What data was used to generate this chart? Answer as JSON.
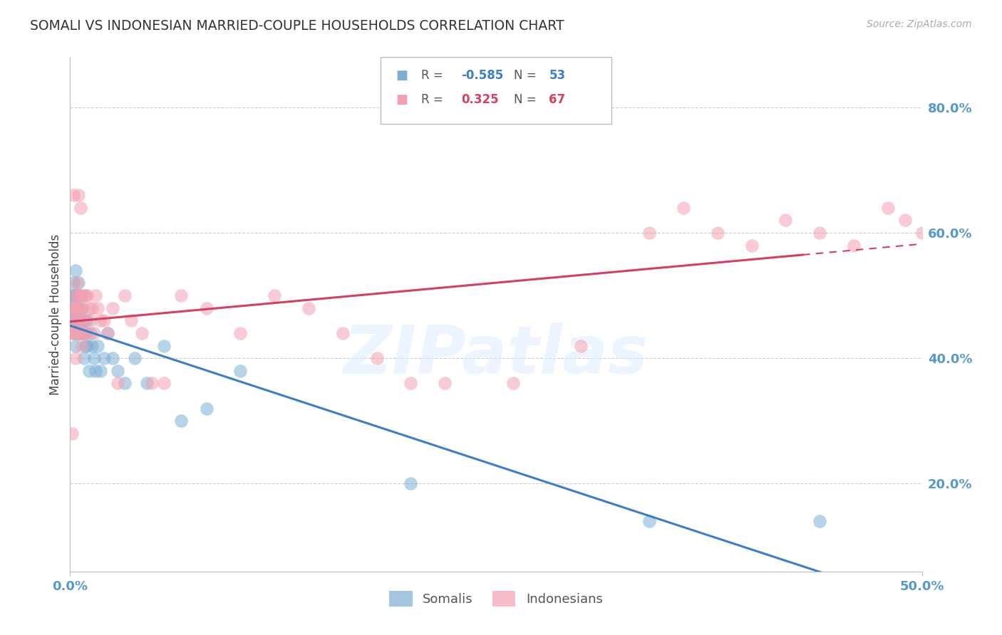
{
  "title": "SOMALI VS INDONESIAN MARRIED-COUPLE HOUSEHOLDS CORRELATION CHART",
  "source": "Source: ZipAtlas.com",
  "ylabel": "Married-couple Households",
  "xlim": [
    0.0,
    0.5
  ],
  "ylim": [
    0.06,
    0.88
  ],
  "yticks": [
    0.2,
    0.4,
    0.6,
    0.8
  ],
  "ytick_labels": [
    "20.0%",
    "40.0%",
    "60.0%",
    "80.0%"
  ],
  "xticks": [
    0.0,
    0.5
  ],
  "xtick_labels": [
    "0.0%",
    "50.0%"
  ],
  "somali_color": "#7BAFD4",
  "indonesian_color": "#F4A0B0",
  "somali_line_color": "#3B7FC4",
  "indonesian_line_color": "#D44060",
  "indonesian_dash_color": "#D44060",
  "watermark_text": "ZIPatlas",
  "legend_somali": "Somalis",
  "legend_indonesian": "Indonesians",
  "somali_R": "-0.585",
  "somali_N": "53",
  "indonesian_R": "0.325",
  "indonesian_N": "67",
  "somali_x": [
    0.001,
    0.001,
    0.001,
    0.002,
    0.002,
    0.002,
    0.002,
    0.002,
    0.003,
    0.003,
    0.003,
    0.003,
    0.003,
    0.004,
    0.004,
    0.004,
    0.004,
    0.005,
    0.005,
    0.005,
    0.005,
    0.006,
    0.006,
    0.006,
    0.007,
    0.007,
    0.008,
    0.008,
    0.009,
    0.009,
    0.01,
    0.01,
    0.011,
    0.012,
    0.013,
    0.014,
    0.015,
    0.016,
    0.018,
    0.02,
    0.022,
    0.025,
    0.028,
    0.032,
    0.038,
    0.045,
    0.055,
    0.065,
    0.08,
    0.1,
    0.2,
    0.34,
    0.44
  ],
  "somali_y": [
    0.5,
    0.48,
    0.46,
    0.52,
    0.5,
    0.48,
    0.46,
    0.44,
    0.54,
    0.5,
    0.48,
    0.46,
    0.42,
    0.5,
    0.48,
    0.46,
    0.44,
    0.52,
    0.48,
    0.46,
    0.44,
    0.5,
    0.46,
    0.44,
    0.48,
    0.44,
    0.46,
    0.4,
    0.44,
    0.42,
    0.46,
    0.42,
    0.38,
    0.44,
    0.42,
    0.4,
    0.38,
    0.42,
    0.38,
    0.4,
    0.44,
    0.4,
    0.38,
    0.36,
    0.4,
    0.36,
    0.42,
    0.3,
    0.32,
    0.38,
    0.2,
    0.14,
    0.14
  ],
  "indonesian_x": [
    0.001,
    0.001,
    0.001,
    0.002,
    0.002,
    0.002,
    0.002,
    0.003,
    0.003,
    0.003,
    0.003,
    0.004,
    0.004,
    0.004,
    0.004,
    0.005,
    0.005,
    0.005,
    0.006,
    0.006,
    0.006,
    0.007,
    0.007,
    0.007,
    0.008,
    0.008,
    0.009,
    0.009,
    0.01,
    0.01,
    0.011,
    0.012,
    0.013,
    0.014,
    0.015,
    0.016,
    0.018,
    0.02,
    0.022,
    0.025,
    0.028,
    0.032,
    0.036,
    0.042,
    0.048,
    0.055,
    0.065,
    0.08,
    0.1,
    0.12,
    0.14,
    0.16,
    0.18,
    0.2,
    0.22,
    0.26,
    0.3,
    0.34,
    0.36,
    0.38,
    0.4,
    0.42,
    0.44,
    0.46,
    0.48,
    0.49,
    0.5
  ],
  "indonesian_y": [
    0.28,
    0.44,
    0.48,
    0.48,
    0.46,
    0.44,
    0.66,
    0.5,
    0.48,
    0.44,
    0.4,
    0.52,
    0.48,
    0.46,
    0.44,
    0.66,
    0.5,
    0.48,
    0.64,
    0.5,
    0.44,
    0.48,
    0.46,
    0.42,
    0.5,
    0.46,
    0.5,
    0.44,
    0.5,
    0.44,
    0.48,
    0.46,
    0.48,
    0.44,
    0.5,
    0.48,
    0.46,
    0.46,
    0.44,
    0.48,
    0.36,
    0.5,
    0.46,
    0.44,
    0.36,
    0.36,
    0.5,
    0.48,
    0.44,
    0.5,
    0.48,
    0.44,
    0.4,
    0.36,
    0.36,
    0.36,
    0.42,
    0.6,
    0.64,
    0.6,
    0.58,
    0.62,
    0.6,
    0.58,
    0.64,
    0.62,
    0.6
  ],
  "bg_color": "#FFFFFF",
  "grid_color": "#CCCCCC",
  "title_color": "#333333",
  "tick_label_color": "#5599CC",
  "source_color": "#AAAAAA"
}
